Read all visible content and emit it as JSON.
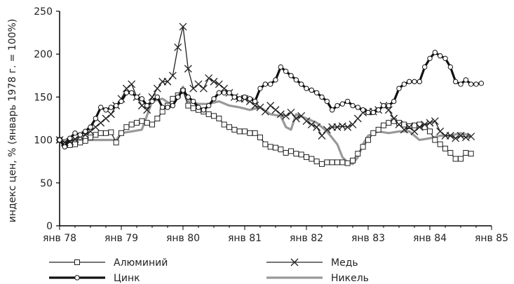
{
  "chart_data": {
    "type": "line",
    "title": "",
    "xlabel": "",
    "ylabel": "индекс цен, % (январь 1978 г. = 100%)",
    "ylim": [
      0,
      250
    ],
    "yticks": [
      0,
      50,
      100,
      150,
      200,
      250
    ],
    "xticks": [
      {
        "label": "янв 78",
        "month": 0
      },
      {
        "label": "янв 79",
        "month": 12
      },
      {
        "label": "янв 80",
        "month": 24
      },
      {
        "label": "янв 81",
        "month": 36
      },
      {
        "label": "янв 82",
        "month": 48
      },
      {
        "label": "янв 83",
        "month": 60
      },
      {
        "label": "янв 84",
        "month": 72
      },
      {
        "label": "янв 85",
        "month": 84
      }
    ],
    "x_units": "months since January 1978",
    "grid": false,
    "legend_position": "bottom",
    "series": [
      {
        "name": "Алюминий",
        "color": "#222222",
        "marker": "square",
        "points": [
          [
            0,
            100
          ],
          [
            1,
            95
          ],
          [
            2,
            94
          ],
          [
            3,
            95
          ],
          [
            4,
            97
          ],
          [
            5,
            99
          ],
          [
            6,
            103
          ],
          [
            7,
            106
          ],
          [
            8,
            108
          ],
          [
            9,
            108
          ],
          [
            10,
            109
          ],
          [
            11,
            97
          ],
          [
            12,
            108
          ],
          [
            13,
            115
          ],
          [
            14,
            118
          ],
          [
            15,
            120
          ],
          [
            16,
            122
          ],
          [
            17,
            120
          ],
          [
            18,
            118
          ],
          [
            19,
            125
          ],
          [
            20,
            133
          ],
          [
            21,
            140
          ],
          [
            22,
            148
          ],
          [
            23,
            152
          ],
          [
            24,
            157
          ],
          [
            25,
            140
          ],
          [
            26,
            137
          ],
          [
            27,
            135
          ],
          [
            28,
            133
          ],
          [
            29,
            130
          ],
          [
            30,
            128
          ],
          [
            31,
            125
          ],
          [
            32,
            118
          ],
          [
            33,
            115
          ],
          [
            34,
            112
          ],
          [
            35,
            110
          ],
          [
            36,
            110
          ],
          [
            37,
            108
          ],
          [
            38,
            108
          ],
          [
            39,
            103
          ],
          [
            40,
            95
          ],
          [
            41,
            92
          ],
          [
            42,
            91
          ],
          [
            43,
            89
          ],
          [
            44,
            85
          ],
          [
            45,
            87
          ],
          [
            46,
            84
          ],
          [
            47,
            83
          ],
          [
            48,
            80
          ],
          [
            49,
            78
          ],
          [
            50,
            75
          ],
          [
            51,
            72
          ],
          [
            52,
            74
          ],
          [
            53,
            74
          ],
          [
            54,
            74
          ],
          [
            55,
            74
          ],
          [
            56,
            73
          ],
          [
            57,
            76
          ],
          [
            58,
            84
          ],
          [
            59,
            92
          ],
          [
            60,
            100
          ],
          [
            61,
            108
          ],
          [
            62,
            112
          ],
          [
            63,
            117
          ],
          [
            64,
            120
          ],
          [
            65,
            122
          ],
          [
            66,
            120
          ],
          [
            67,
            118
          ],
          [
            68,
            116
          ],
          [
            69,
            117
          ],
          [
            70,
            118
          ],
          [
            71,
            115
          ],
          [
            72,
            110
          ],
          [
            73,
            100
          ],
          [
            74,
            95
          ],
          [
            75,
            90
          ],
          [
            76,
            85
          ],
          [
            77,
            78
          ],
          [
            78,
            78
          ],
          [
            79,
            85
          ],
          [
            80,
            84
          ]
        ]
      },
      {
        "name": "Медь",
        "color": "#222222",
        "marker": "x",
        "points": [
          [
            0,
            100
          ],
          [
            1,
            97
          ],
          [
            2,
            98
          ],
          [
            3,
            101
          ],
          [
            4,
            104
          ],
          [
            5,
            106
          ],
          [
            6,
            110
          ],
          [
            7,
            115
          ],
          [
            8,
            120
          ],
          [
            9,
            125
          ],
          [
            10,
            130
          ],
          [
            11,
            140
          ],
          [
            12,
            148
          ],
          [
            13,
            160
          ],
          [
            14,
            165
          ],
          [
            15,
            150
          ],
          [
            16,
            140
          ],
          [
            17,
            135
          ],
          [
            18,
            150
          ],
          [
            19,
            160
          ],
          [
            20,
            168
          ],
          [
            21,
            168
          ],
          [
            22,
            175
          ],
          [
            23,
            208
          ],
          [
            24,
            232
          ],
          [
            25,
            183
          ],
          [
            26,
            160
          ],
          [
            27,
            165
          ],
          [
            28,
            160
          ],
          [
            29,
            172
          ],
          [
            30,
            168
          ],
          [
            31,
            165
          ],
          [
            32,
            160
          ],
          [
            33,
            155
          ],
          [
            34,
            150
          ],
          [
            35,
            148
          ],
          [
            36,
            148
          ],
          [
            37,
            145
          ],
          [
            38,
            140
          ],
          [
            39,
            138
          ],
          [
            40,
            133
          ],
          [
            41,
            140
          ],
          [
            42,
            135
          ],
          [
            43,
            130
          ],
          [
            44,
            128
          ],
          [
            45,
            132
          ],
          [
            46,
            125
          ],
          [
            47,
            128
          ],
          [
            48,
            122
          ],
          [
            49,
            118
          ],
          [
            50,
            115
          ],
          [
            51,
            105
          ],
          [
            52,
            112
          ],
          [
            53,
            115
          ],
          [
            54,
            115
          ],
          [
            55,
            116
          ],
          [
            56,
            115
          ],
          [
            57,
            118
          ],
          [
            58,
            125
          ],
          [
            59,
            132
          ],
          [
            60,
            133
          ],
          [
            61,
            133
          ],
          [
            62,
            135
          ],
          [
            63,
            140
          ],
          [
            64,
            135
          ],
          [
            65,
            125
          ],
          [
            66,
            118
          ],
          [
            67,
            112
          ],
          [
            68,
            115
          ],
          [
            69,
            110
          ],
          [
            70,
            115
          ],
          [
            71,
            118
          ],
          [
            72,
            120
          ],
          [
            73,
            122
          ],
          [
            74,
            110
          ],
          [
            75,
            105
          ],
          [
            76,
            105
          ],
          [
            77,
            102
          ],
          [
            78,
            105
          ],
          [
            79,
            103
          ],
          [
            80,
            104
          ]
        ]
      },
      {
        "name": "Цинк",
        "color": "#111111",
        "marker": "circle",
        "points": [
          [
            0,
            100
          ],
          [
            1,
            92
          ],
          [
            2,
            102
          ],
          [
            3,
            108
          ],
          [
            4,
            106
          ],
          [
            5,
            110
          ],
          [
            6,
            115
          ],
          [
            7,
            125
          ],
          [
            8,
            138
          ],
          [
            9,
            135
          ],
          [
            10,
            138
          ],
          [
            11,
            140
          ],
          [
            12,
            145
          ],
          [
            13,
            155
          ],
          [
            14,
            155
          ],
          [
            15,
            150
          ],
          [
            16,
            148
          ],
          [
            17,
            140
          ],
          [
            18,
            145
          ],
          [
            19,
            150
          ],
          [
            20,
            138
          ],
          [
            21,
            138
          ],
          [
            22,
            140
          ],
          [
            23,
            150
          ],
          [
            24,
            158
          ],
          [
            25,
            150
          ],
          [
            26,
            145
          ],
          [
            27,
            138
          ],
          [
            28,
            135
          ],
          [
            29,
            140
          ],
          [
            30,
            148
          ],
          [
            31,
            155
          ],
          [
            32,
            155
          ],
          [
            33,
            155
          ],
          [
            34,
            150
          ],
          [
            35,
            148
          ],
          [
            36,
            150
          ],
          [
            37,
            148
          ],
          [
            38,
            145
          ],
          [
            39,
            160
          ],
          [
            40,
            165
          ],
          [
            41,
            165
          ],
          [
            42,
            170
          ],
          [
            43,
            185
          ],
          [
            44,
            180
          ],
          [
            45,
            175
          ],
          [
            46,
            170
          ],
          [
            47,
            165
          ],
          [
            48,
            160
          ],
          [
            49,
            158
          ],
          [
            50,
            155
          ],
          [
            51,
            150
          ],
          [
            52,
            145
          ],
          [
            53,
            135
          ],
          [
            54,
            140
          ],
          [
            55,
            142
          ],
          [
            56,
            145
          ],
          [
            57,
            140
          ],
          [
            58,
            138
          ],
          [
            59,
            135
          ],
          [
            60,
            132
          ],
          [
            61,
            132
          ],
          [
            62,
            135
          ],
          [
            63,
            140
          ],
          [
            64,
            140
          ],
          [
            65,
            145
          ],
          [
            66,
            160
          ],
          [
            67,
            165
          ],
          [
            68,
            168
          ],
          [
            69,
            168
          ],
          [
            70,
            168
          ],
          [
            71,
            185
          ],
          [
            72,
            195
          ],
          [
            73,
            202
          ],
          [
            74,
            198
          ],
          [
            75,
            195
          ],
          [
            76,
            185
          ],
          [
            77,
            168
          ],
          [
            78,
            165
          ],
          [
            79,
            170
          ],
          [
            80,
            165
          ],
          [
            81,
            165
          ],
          [
            82,
            166
          ]
        ]
      },
      {
        "name": "Никель",
        "color": "#999999",
        "marker": "none",
        "points": [
          [
            0,
            100
          ],
          [
            3,
            100
          ],
          [
            6,
            100
          ],
          [
            9,
            100
          ],
          [
            11,
            100
          ],
          [
            12,
            108
          ],
          [
            14,
            110
          ],
          [
            16,
            112
          ],
          [
            18,
            145
          ],
          [
            20,
            148
          ],
          [
            22,
            140
          ],
          [
            24,
            162
          ],
          [
            25,
            145
          ],
          [
            27,
            142
          ],
          [
            29,
            142
          ],
          [
            31,
            145
          ],
          [
            33,
            140
          ],
          [
            35,
            138
          ],
          [
            37,
            135
          ],
          [
            39,
            138
          ],
          [
            41,
            130
          ],
          [
            43,
            128
          ],
          [
            44,
            115
          ],
          [
            45,
            112
          ],
          [
            46,
            130
          ],
          [
            48,
            125
          ],
          [
            50,
            120
          ],
          [
            52,
            110
          ],
          [
            54,
            95
          ],
          [
            55,
            80
          ],
          [
            56,
            74
          ],
          [
            57,
            72
          ],
          [
            58,
            80
          ],
          [
            59,
            95
          ],
          [
            60,
            105
          ],
          [
            62,
            110
          ],
          [
            64,
            108
          ],
          [
            66,
            110
          ],
          [
            68,
            110
          ],
          [
            70,
            100
          ],
          [
            72,
            102
          ],
          [
            74,
            105
          ],
          [
            76,
            105
          ],
          [
            78,
            108
          ],
          [
            80,
            105
          ]
        ]
      }
    ]
  }
}
